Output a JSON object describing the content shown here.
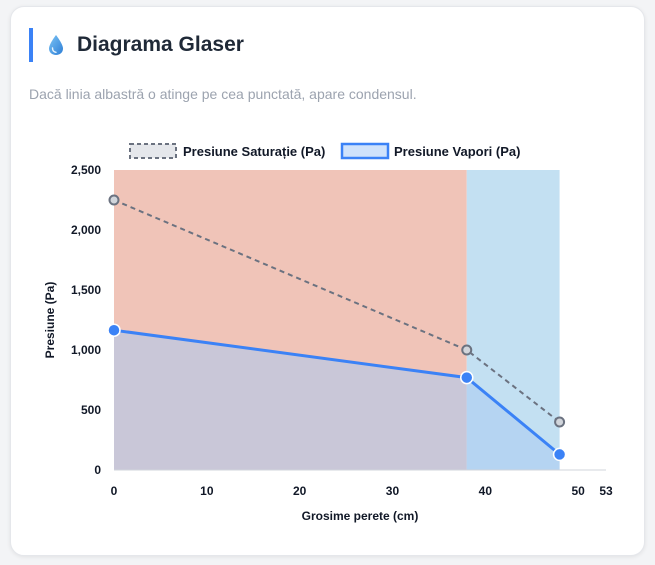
{
  "header": {
    "title": "Diagrama Glaser",
    "subtitle": "Dacă linia albastră o atinge pe cea punctată, apare condensul.",
    "icon": "droplet-icon"
  },
  "colors": {
    "accent": "#3b82f6",
    "saturation_line": "#6b7280",
    "vapor_line": "#3b82f6",
    "zone_material_1": "#f0c4b8",
    "zone_material_2": "#c3e0f2",
    "vapor_fill": "#a9cbf3"
  },
  "chart_data": {
    "type": "line",
    "xlabel": "Grosime perete (cm)",
    "ylabel": "Presiune (Pa)",
    "xlim": [
      0,
      53
    ],
    "ylim": [
      0,
      2500
    ],
    "x_ticks": [
      "0",
      "10",
      "20",
      "30",
      "40",
      "50",
      "53"
    ],
    "y_ticks": [
      "0",
      "500",
      "1,000",
      "1,500",
      "2,000",
      "2,500"
    ],
    "legend_position": "top",
    "series": [
      {
        "name": "Presiune Saturație (Pa)",
        "style": "dashed",
        "x": [
          0,
          38,
          48
        ],
        "values": [
          2250,
          1000,
          400
        ]
      },
      {
        "name": "Presiune Vapori (Pa)",
        "style": "solid",
        "fill": true,
        "x": [
          0,
          38,
          48
        ],
        "values": [
          1165,
          770,
          130
        ]
      }
    ],
    "zones": [
      {
        "from": 0,
        "to": 38,
        "color": "#f0c4b8"
      },
      {
        "from": 38,
        "to": 48,
        "color": "#c3e0f2"
      }
    ]
  }
}
